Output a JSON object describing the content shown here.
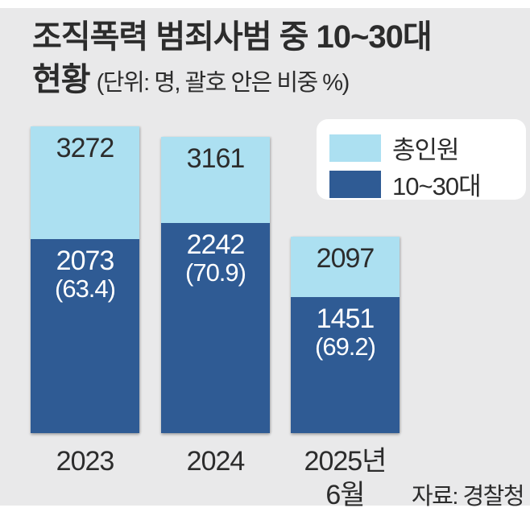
{
  "header": {
    "title_line1": "조직폭력 범죄사범 중 10~30대",
    "title_line2_bold": "현황",
    "subtitle": "(단위: 명, 괄호 안은 비중 %)"
  },
  "legend": {
    "position": "top-right",
    "items": [
      {
        "label": "총인원",
        "color": "#ace0f1"
      },
      {
        "label": "10~30대",
        "color": "#2f5b94"
      }
    ]
  },
  "chart_data": {
    "type": "bar",
    "stacked": true,
    "title": "조직폭력 범죄사범 중 10~30대 현황",
    "unit_note": "단위: 명, 괄호 안은 비중 %",
    "categories": [
      "2023",
      "2024",
      "2025년 6월"
    ],
    "series": [
      {
        "name": "총인원",
        "values": [
          3272,
          3161,
          2097
        ],
        "color": "#ace0f1"
      },
      {
        "name": "10~30대",
        "values": [
          2073,
          2242,
          1451
        ],
        "color": "#2f5b94"
      }
    ],
    "percent_of_total_labels": [
      "(63.4)",
      "(70.9)",
      "(69.2)"
    ],
    "bars": [
      {
        "category_lines": [
          "2023"
        ],
        "total": "3272",
        "young": "2073",
        "young_pct": "(63.4)"
      },
      {
        "category_lines": [
          "2024"
        ],
        "total": "3161",
        "young": "2242",
        "young_pct": "(70.9)"
      },
      {
        "category_lines": [
          "2025년",
          "6월"
        ],
        "total": "2097",
        "young": "1451",
        "young_pct": "(69.2)"
      }
    ],
    "grid": false,
    "value_axis_visible": false
  },
  "colors": {
    "panel_background": "#e9e9ea",
    "total_fill": "#ace0f1",
    "young_fill": "#2f5b94",
    "text_dark": "#2c2c2c",
    "text_on_dark": "#ffffff"
  },
  "footer": {
    "source": "자료: 경찰청"
  }
}
